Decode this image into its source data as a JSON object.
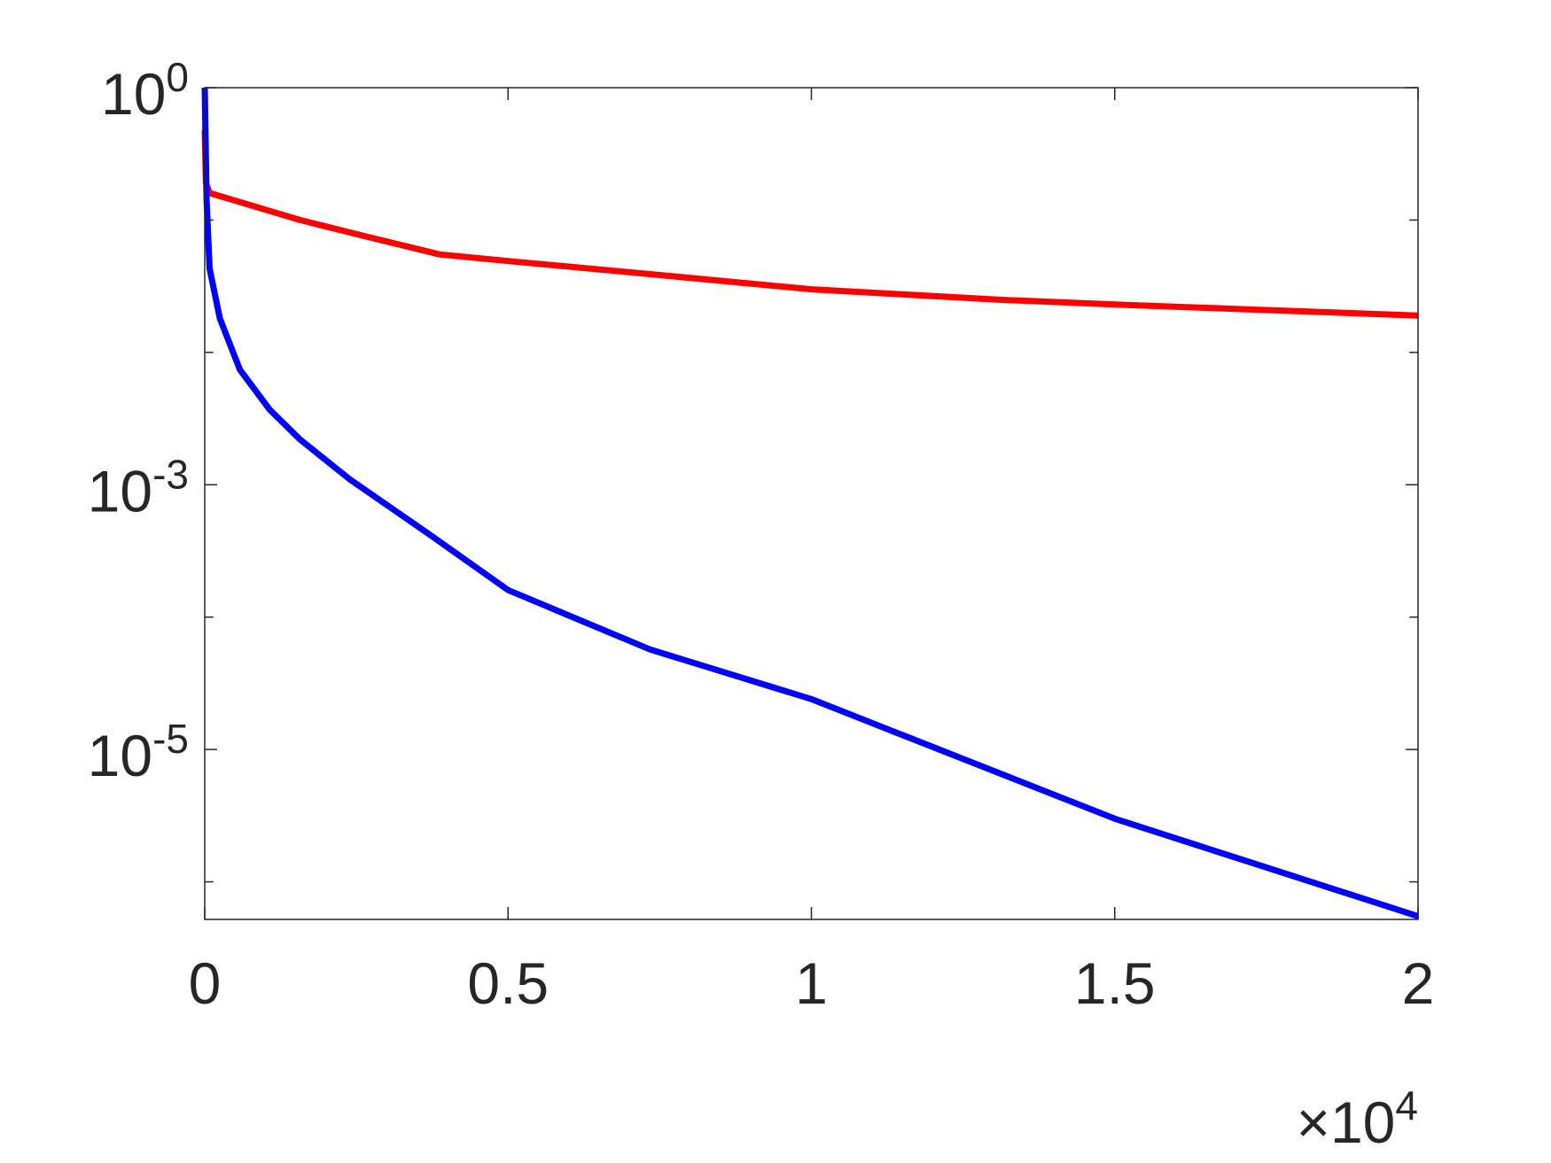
{
  "chart_data": {
    "type": "line",
    "x_exponent_label": "×10^4",
    "xlim": [
      0,
      20000
    ],
    "xticks": [
      {
        "value": 0,
        "label": "0"
      },
      {
        "value": 5000,
        "label": "0.5"
      },
      {
        "value": 10000,
        "label": "1"
      },
      {
        "value": 15000,
        "label": "1.5"
      },
      {
        "value": 20000,
        "label": "2"
      }
    ],
    "ylim": [
      5.2e-07,
      1
    ],
    "yscale": "log",
    "yticks": [
      {
        "value": 1,
        "label": "10^0"
      },
      {
        "value": 0.001,
        "label": "10^-3"
      },
      {
        "value": 1e-05,
        "label": "10^-5"
      }
    ],
    "yminor_ticks": [
      0.1,
      0.01,
      0.0001,
      1e-06
    ],
    "grid": false,
    "series": [
      {
        "color": "#ff0000",
        "x": [
          0,
          20,
          80,
          1570,
          2720,
          3870,
          5000,
          7340,
          10000,
          13100,
          15000,
          20000
        ],
        "values": [
          0.48,
          0.19,
          0.16,
          0.1,
          0.074,
          0.055,
          0.049,
          0.039,
          0.03,
          0.025,
          0.023,
          0.019
        ]
      },
      {
        "color": "#0000ff",
        "x": [
          0,
          30,
          80,
          250,
          580,
          1070,
          1570,
          2390,
          3710,
          5000,
          7340,
          10000,
          15000,
          20000
        ],
        "values": [
          1,
          0.14,
          0.043,
          0.018,
          0.0074,
          0.0037,
          0.0022,
          0.0011,
          0.00042,
          0.00016,
          5.7e-05,
          2.4e-05,
          3e-06,
          5.5e-07
        ]
      }
    ]
  }
}
